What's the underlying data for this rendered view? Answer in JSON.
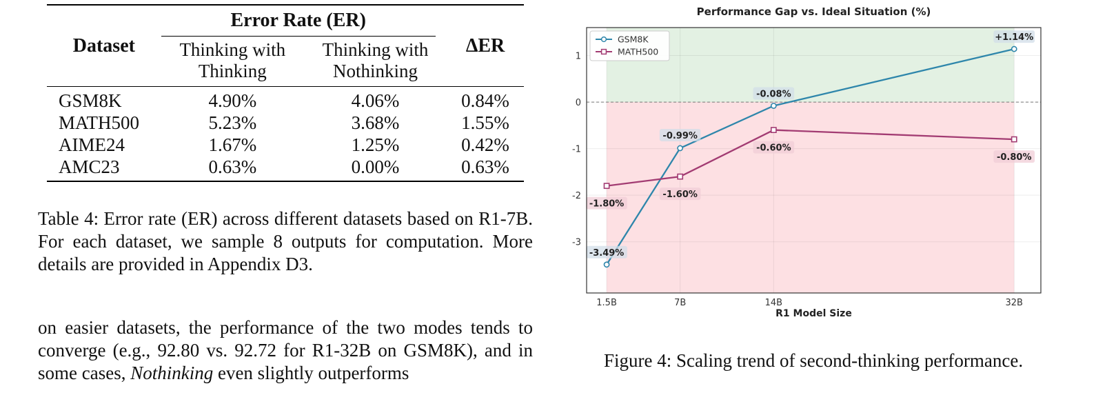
{
  "table": {
    "head": {
      "dataset": "Dataset",
      "group": "Error Rate (ER)",
      "col1_line1": "Thinking with",
      "col1_line2": "Thinking",
      "col2_line1": "Thinking with",
      "col2_line2": "Nothinking",
      "delta": "ΔER"
    },
    "rows": [
      {
        "dataset": "GSM8K",
        "thinking": "4.90%",
        "nothinking": "4.06%",
        "delta": "0.84%"
      },
      {
        "dataset": "MATH500",
        "thinking": "5.23%",
        "nothinking": "3.68%",
        "delta": "1.55%"
      },
      {
        "dataset": "AIME24",
        "thinking": "1.67%",
        "nothinking": "1.25%",
        "delta": "0.42%"
      },
      {
        "dataset": "AMC23",
        "thinking": "0.63%",
        "nothinking": "0.00%",
        "delta": "0.63%"
      }
    ],
    "caption": "Table 4: Error rate (ER) across different datasets based on R1-7B. For each dataset, we sample 8 outputs for computation. More details are provided in Appendix D3."
  },
  "body_text": {
    "part1": "on easier datasets, the performance of the two modes tends to converge (e.g., 92.80 vs. 92.72 for R1-32B on GSM8K), and in some cases, ",
    "emph": "Nothinking",
    "part2": " even slightly outperforms"
  },
  "figure_caption": "Figure 4: Scaling trend of second-thinking performance.",
  "chart_data": {
    "type": "line",
    "title": "Performance Gap vs. Ideal Situation (%)",
    "xlabel": "R1 Model Size",
    "ylabel": "",
    "x": [
      1.5,
      7,
      14,
      32
    ],
    "x_tick_labels": [
      "1.5B",
      "7B",
      "14B",
      "32B"
    ],
    "xlim": [
      0,
      34
    ],
    "ylim": [
      -4.1,
      1.6
    ],
    "y_ticks": [
      1,
      0,
      -1,
      -2,
      -3
    ],
    "grid": true,
    "legend": "top-left",
    "series": [
      {
        "name": "GSM8K",
        "values": [
          -3.49,
          -0.99,
          -0.08,
          1.14
        ],
        "labels": [
          "-3.49%",
          "-0.99%",
          "-0.08%",
          "+1.14%"
        ],
        "marker": "circle",
        "color": "#2e86ab"
      },
      {
        "name": "MATH500",
        "values": [
          -1.8,
          -1.6,
          -0.6,
          -0.8
        ],
        "labels": [
          "-1.80%",
          "-1.60%",
          "-0.60%",
          "-0.80%"
        ],
        "marker": "square",
        "color": "#a23b72"
      }
    ],
    "positive_region_color": "#e3f1e3",
    "negative_region_color": "#fde0e3",
    "baseline": 0
  }
}
